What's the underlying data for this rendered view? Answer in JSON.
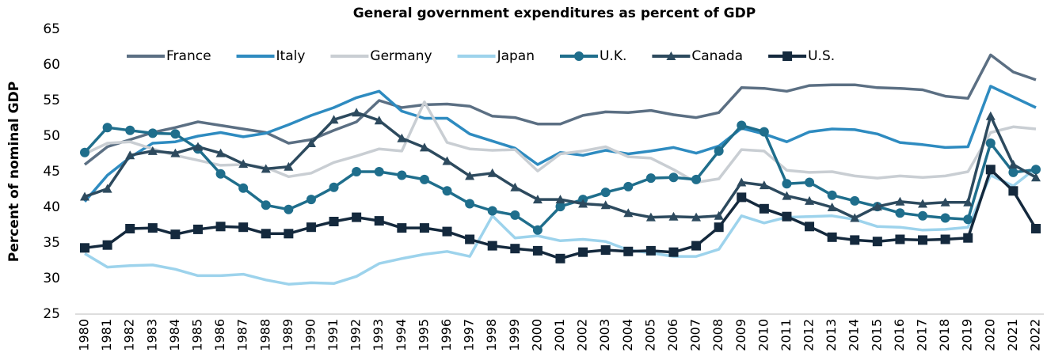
{
  "chart_data": {
    "type": "line",
    "title": "General government expenditures as percent of GDP",
    "y_label": "Percent of nominal GDP",
    "legend": "top",
    "grid": false,
    "categories": [
      "1980",
      "1981",
      "1982",
      "1983",
      "1984",
      "1985",
      "1986",
      "1987",
      "1988",
      "1989",
      "1990",
      "1991",
      "1992",
      "1993",
      "1994",
      "1995",
      "1996",
      "1997",
      "1998",
      "1999",
      "2000",
      "2001",
      "2002",
      "2003",
      "2004",
      "2005",
      "2006",
      "2007",
      "2008",
      "2009",
      "2010",
      "2011",
      "2012",
      "2013",
      "2014",
      "2015",
      "2016",
      "2017",
      "2018",
      "2019",
      "2020",
      "2021",
      "2022"
    ],
    "ylim": [
      25,
      65
    ],
    "yticks": [
      25,
      30,
      35,
      40,
      45,
      50,
      55,
      60,
      65
    ],
    "series": [
      {
        "name": "France",
        "color": "#5b6f83",
        "marker": "none",
        "values": [
          46,
          48.5,
          49.5,
          50.5,
          51.2,
          52,
          51.5,
          51,
          50.5,
          49,
          49.5,
          50.8,
          52,
          55,
          54,
          54.4,
          54.5,
          54.2,
          52.8,
          52.6,
          51.7,
          51.7,
          52.9,
          53.4,
          53.3,
          53.6,
          53,
          52.6,
          53.3,
          56.8,
          56.7,
          56.3,
          57.1,
          57.2,
          57.2,
          56.8,
          56.7,
          56.5,
          55.6,
          55.3,
          61.4,
          59,
          57.9
        ]
      },
      {
        "name": "Italy",
        "color": "#2e8bc0",
        "marker": "none",
        "values": [
          40.8,
          44.5,
          47,
          49,
          49.2,
          50,
          50.5,
          49.9,
          50.4,
          51.6,
          52.9,
          54,
          55.4,
          56.3,
          53.5,
          52.5,
          52.5,
          50.3,
          49.3,
          48.3,
          46,
          47.7,
          47.3,
          48,
          47.5,
          47.9,
          48.4,
          47.6,
          48.6,
          51.1,
          50.3,
          49.2,
          50.6,
          51,
          50.9,
          50.3,
          49.1,
          48.8,
          48.4,
          48.5,
          57,
          55.5,
          54
        ]
      },
      {
        "name": "Germany",
        "color": "#c9ced3",
        "marker": "none",
        "values": [
          47.5,
          49,
          49.2,
          48.2,
          47.3,
          46.6,
          45.9,
          46,
          45.6,
          44.3,
          44.8,
          46.3,
          47.2,
          48.2,
          47.9,
          54.8,
          49.1,
          48.2,
          48,
          48.1,
          45.1,
          47.5,
          47.9,
          48.5,
          47.1,
          46.9,
          45.3,
          43.5,
          44,
          48.1,
          47.9,
          45.2,
          44.9,
          45,
          44.4,
          44.1,
          44.4,
          44.2,
          44.4,
          45,
          50.5,
          51.3,
          51
        ]
      },
      {
        "name": "Japan",
        "color": "#9dd3ec",
        "marker": "none",
        "values": [
          33.5,
          31.6,
          31.8,
          31.9,
          31.3,
          30.4,
          30.4,
          30.6,
          29.8,
          29.2,
          29.4,
          29.3,
          30.3,
          32.1,
          32.8,
          33.4,
          33.8,
          33.1,
          38.8,
          35.7,
          36,
          35.3,
          35.5,
          35.2,
          34,
          33.6,
          33.1,
          33.1,
          34.1,
          38.8,
          37.8,
          38.6,
          38.7,
          38.8,
          38.3,
          37.3,
          37.2,
          36.8,
          36.9,
          37.2,
          44.5,
          43,
          45.5
        ]
      },
      {
        "name": "U.K.",
        "color": "#1f6e8c",
        "marker": "circle",
        "values": [
          47.7,
          51.2,
          50.8,
          50.4,
          50.3,
          48.2,
          44.7,
          42.7,
          40.3,
          39.7,
          41.1,
          42.8,
          45,
          45,
          44.5,
          43.9,
          42.3,
          40.5,
          39.5,
          38.9,
          36.8,
          40.1,
          41.1,
          42.1,
          42.9,
          44.1,
          44.2,
          43.9,
          47.9,
          51.5,
          50.6,
          43.3,
          43.5,
          41.7,
          40.9,
          40.1,
          39.2,
          38.8,
          38.5,
          38.3,
          49,
          44.9,
          45.3
        ]
      },
      {
        "name": "Canada",
        "color": "#2d4a5e",
        "marker": "triangle",
        "values": [
          41.5,
          42.6,
          47.3,
          47.9,
          47.6,
          48.5,
          47.6,
          46.1,
          45.4,
          45.7,
          49,
          52.3,
          53.3,
          52.2,
          49.7,
          48.4,
          46.5,
          44.4,
          44.8,
          42.8,
          41.1,
          41.1,
          40.5,
          40.3,
          39.2,
          38.6,
          38.7,
          38.6,
          38.8,
          43.5,
          43.1,
          41.6,
          40.9,
          40,
          38.5,
          40.1,
          40.8,
          40.5,
          40.7,
          40.7,
          52.8,
          46,
          44.2
        ]
      },
      {
        "name": "U.S.",
        "color": "#14293d",
        "marker": "square",
        "values": [
          34.3,
          34.7,
          37,
          37.1,
          36.2,
          36.9,
          37.3,
          37.2,
          36.3,
          36.3,
          37.2,
          38,
          38.6,
          38.1,
          37.1,
          37.1,
          36.6,
          35.5,
          34.6,
          34.2,
          33.9,
          32.8,
          33.7,
          34,
          33.8,
          33.9,
          33.7,
          34.6,
          37.2,
          41.4,
          39.8,
          38.7,
          37.3,
          35.8,
          35.4,
          35.2,
          35.5,
          35.4,
          35.5,
          35.7,
          45.3,
          42.3,
          37
        ]
      }
    ]
  }
}
